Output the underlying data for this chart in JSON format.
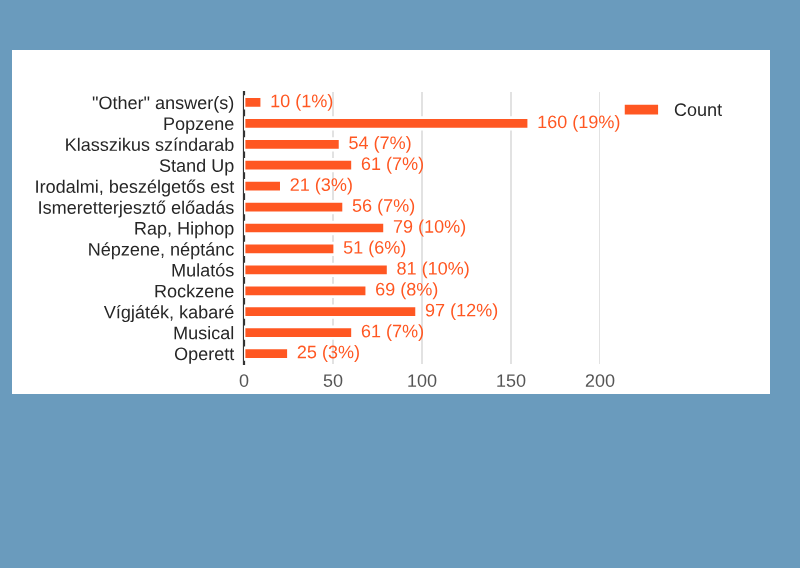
{
  "chart_data": {
    "type": "bar",
    "orientation": "horizontal",
    "categories": [
      "\"Other\" answer(s)",
      "Popzene",
      "Klasszikus színdarab",
      "Stand Up",
      "Irodalmi, beszélgetős est",
      "Ismeretterjesztő előadás",
      "Rap, Hiphop",
      "Népzene, néptánc",
      "Mulatós",
      "Rockzene",
      "Vígjáték, kabaré",
      "Musical",
      "Operett"
    ],
    "series": [
      {
        "name": "Count",
        "color": "#ff5722",
        "values": [
          10,
          160,
          54,
          61,
          21,
          56,
          79,
          51,
          81,
          69,
          97,
          61,
          25
        ],
        "value_labels": [
          "10 (1%)",
          "160 (19%)",
          "54 (7%)",
          "61 (7%)",
          "21 (3%)",
          "56 (7%)",
          "79 (10%)",
          "51 (6%)",
          "81 (10%)",
          "69 (8%)",
          "97 (12%)",
          "61 (7%)",
          "25 (3%)"
        ]
      }
    ],
    "xlim": [
      0,
      200
    ],
    "xticks": [
      0,
      50,
      100,
      150,
      200
    ],
    "grid": "x",
    "legend": "top right"
  }
}
